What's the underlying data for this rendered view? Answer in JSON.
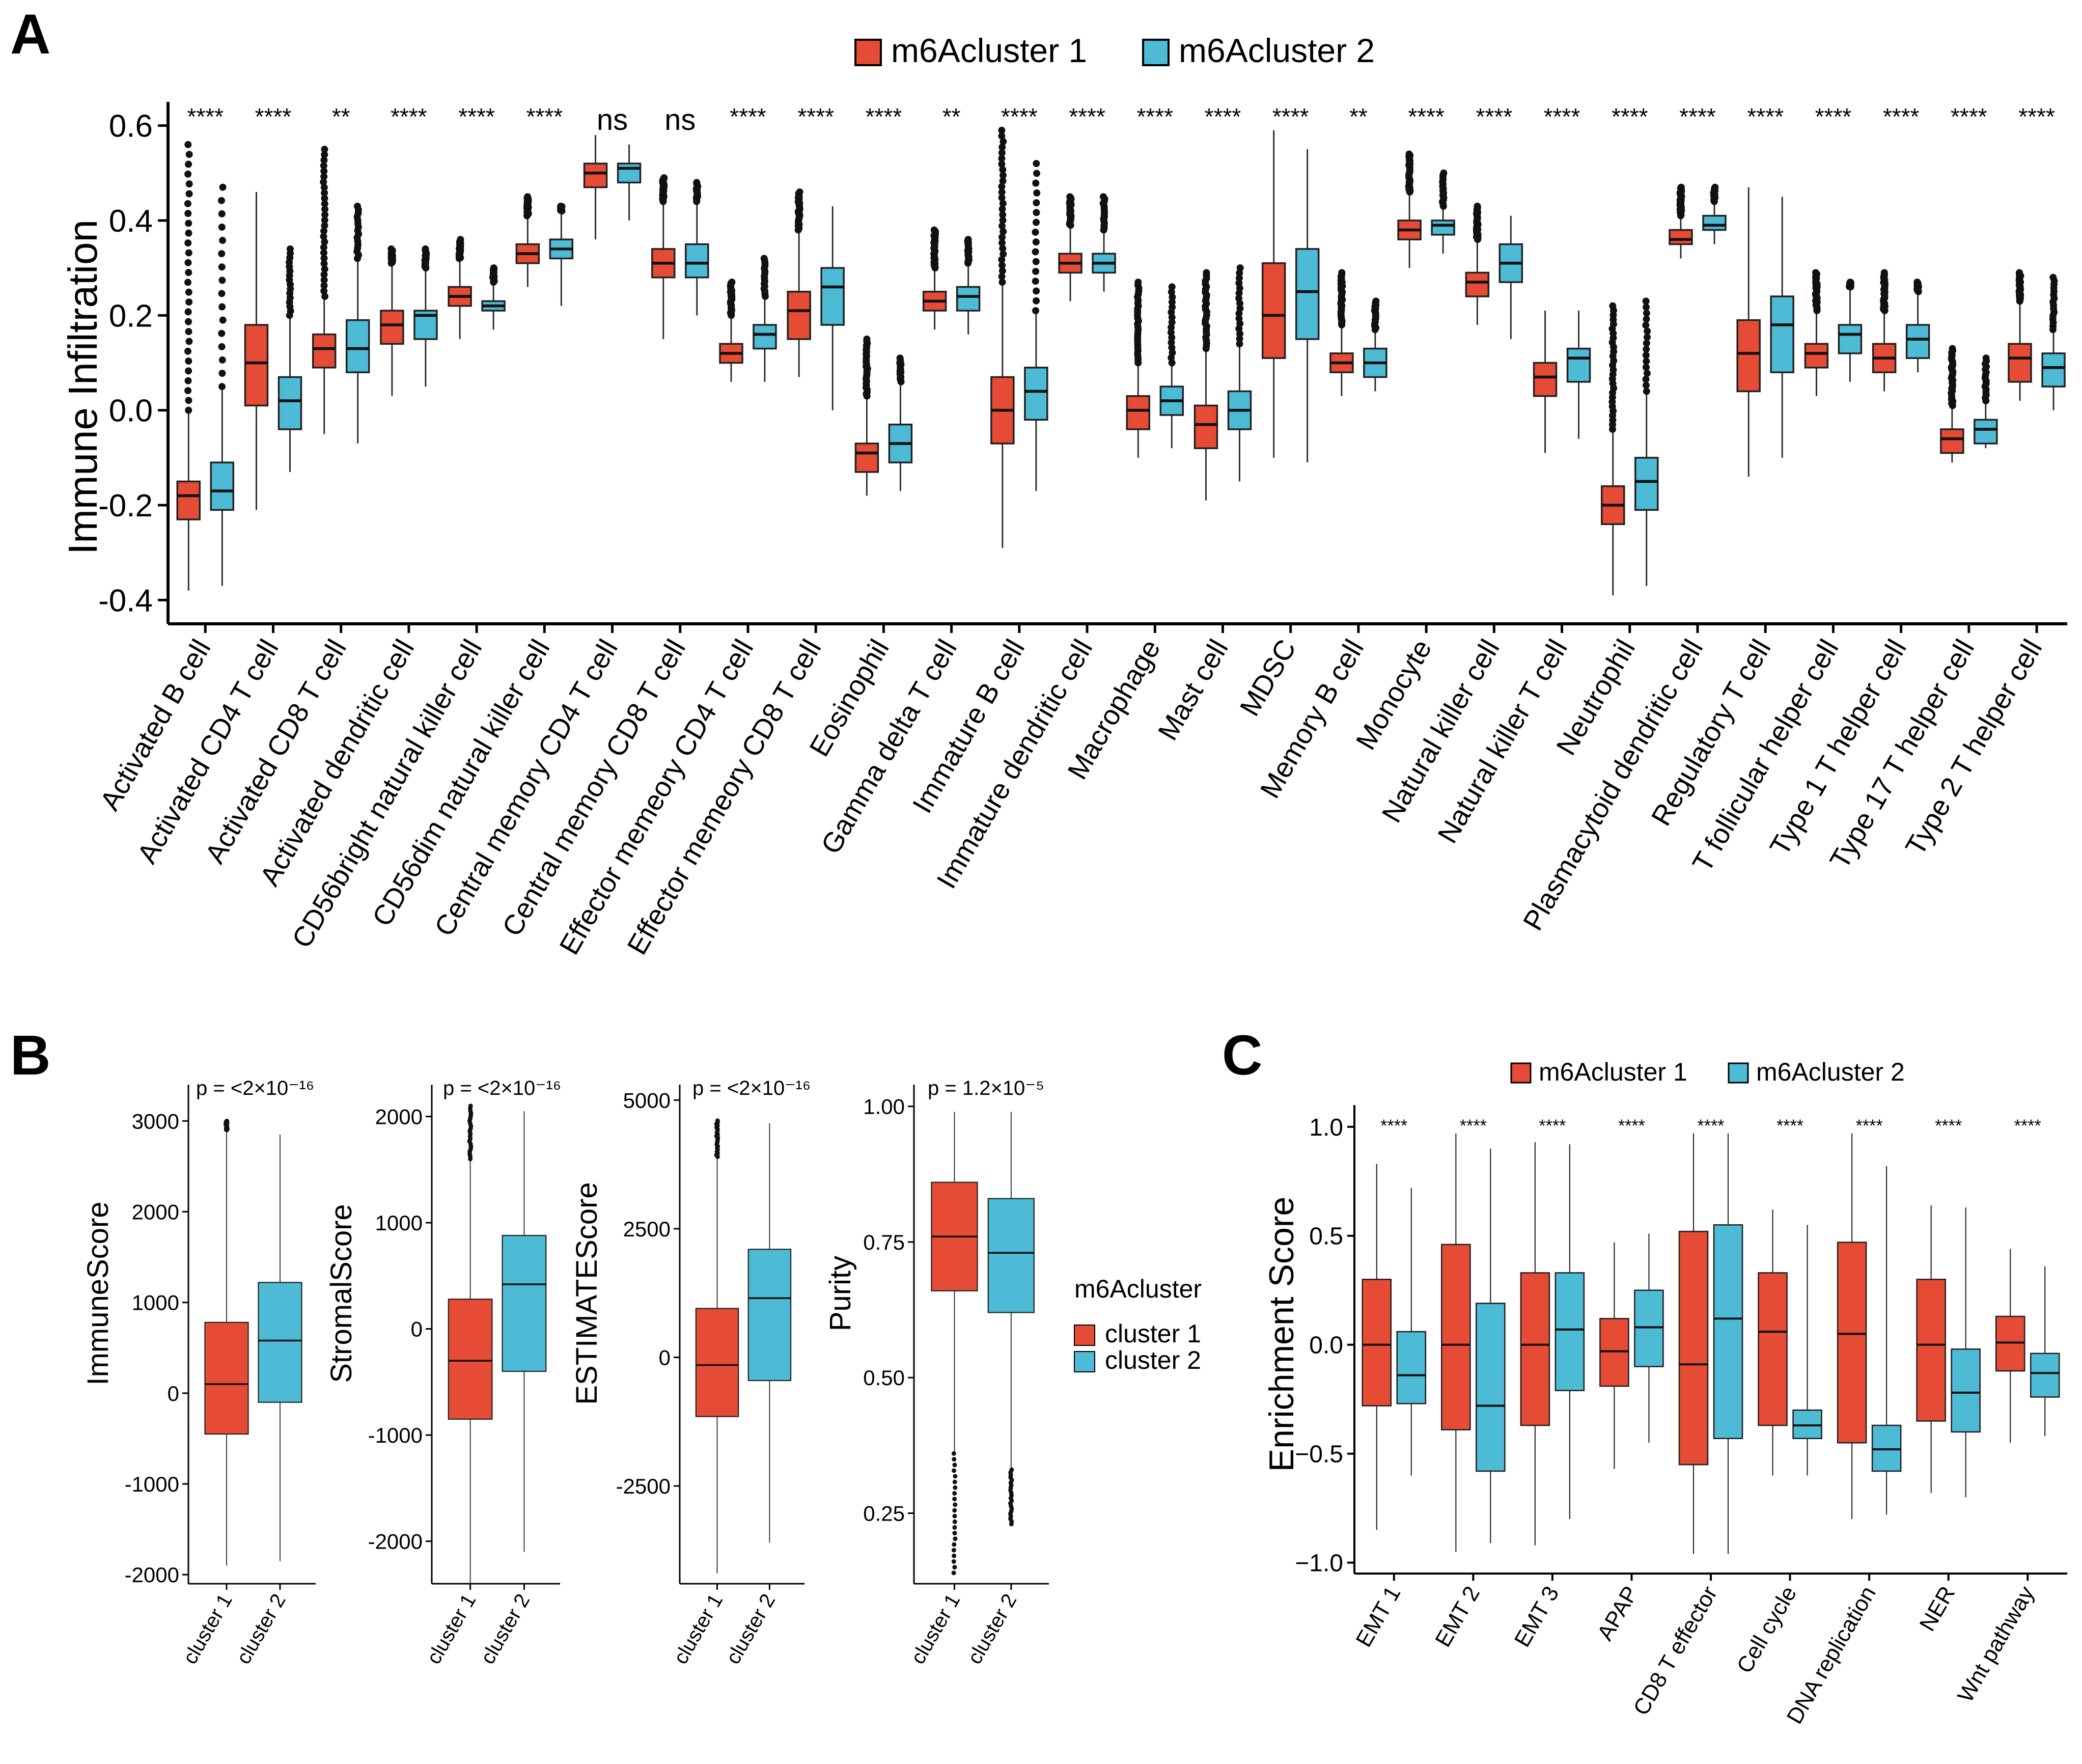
{
  "colors": {
    "cluster1": "#E64B35",
    "cluster2": "#4DBBD5",
    "axis": "#000000"
  },
  "chart_data": [
    {
      "panel": "A",
      "type": "box",
      "ylabel": "Immune Infiltration",
      "ylim": [
        -0.45,
        0.65
      ],
      "yticks": [
        -0.4,
        -0.2,
        0.0,
        0.2,
        0.4,
        0.6
      ],
      "ytick_labels": [
        "-0.4",
        "-0.2",
        "0.0",
        "0.2",
        "0.4",
        "0.6"
      ],
      "legend": [
        "m6Acluster 1",
        "m6Acluster 2"
      ],
      "categories": [
        "Activated B cell",
        "Activated CD4 T cell",
        "Activated CD8 T cell",
        "Activated dendritic cell",
        "CD56bright natural killer cell",
        "CD56dim natural killer cell",
        "Central memory CD4 T cell",
        "Central memory CD8 T cell",
        "Effector memeory CD4 T cell",
        "Effector memeory CD8 T cell",
        "Eosinophil",
        "Gamma delta T cell",
        "Immature  B cell",
        "Immature dendritic cell",
        "Macrophage",
        "Mast cell",
        "MDSC",
        "Memory B cell",
        "Monocyte",
        "Natural killer cell",
        "Natural killer T cell",
        "Neutrophil",
        "Plasmacytoid dendritic cell",
        "Regulatory T cell",
        "T follicular helper cell",
        "Type 1 T helper cell",
        "Type 17 T helper cell",
        "Type 2 T helper cell"
      ],
      "significance": [
        "****",
        "****",
        "**",
        "****",
        "****",
        "****",
        "ns",
        "ns",
        "****",
        "****",
        "****",
        "**",
        "****",
        "****",
        "****",
        "****",
        "****",
        "**",
        "****",
        "****",
        "****",
        "****",
        "****",
        "****",
        "****",
        "****",
        "****",
        "****"
      ],
      "series": [
        {
          "name": "m6Acluster 1",
          "stats": [
            [
              -0.38,
              -0.23,
              -0.18,
              -0.15,
              0.0,
              0.56
            ],
            [
              -0.21,
              0.01,
              0.1,
              0.18,
              0.46,
              0.46
            ],
            [
              -0.05,
              0.09,
              0.13,
              0.16,
              0.24,
              0.55
            ],
            [
              0.03,
              0.14,
              0.18,
              0.21,
              0.31,
              0.34
            ],
            [
              0.15,
              0.22,
              0.24,
              0.26,
              0.32,
              0.36
            ],
            [
              0.26,
              0.31,
              0.33,
              0.35,
              0.41,
              0.45
            ],
            [
              0.36,
              0.47,
              0.5,
              0.52,
              0.58,
              0.58
            ],
            [
              0.15,
              0.28,
              0.31,
              0.34,
              0.44,
              0.49
            ],
            [
              0.06,
              0.1,
              0.12,
              0.14,
              0.2,
              0.27
            ],
            [
              0.07,
              0.15,
              0.21,
              0.25,
              0.38,
              0.46
            ],
            [
              -0.18,
              -0.13,
              -0.09,
              -0.07,
              0.03,
              0.15
            ],
            [
              0.17,
              0.21,
              0.23,
              0.25,
              0.3,
              0.38
            ],
            [
              -0.29,
              -0.07,
              0.0,
              0.07,
              0.27,
              0.59
            ],
            [
              0.23,
              0.29,
              0.31,
              0.33,
              0.39,
              0.45
            ],
            [
              -0.1,
              -0.04,
              0.0,
              0.03,
              0.1,
              0.27
            ],
            [
              -0.19,
              -0.08,
              -0.03,
              0.01,
              0.13,
              0.29
            ],
            [
              -0.1,
              0.11,
              0.2,
              0.31,
              0.59,
              0.59
            ],
            [
              0.03,
              0.08,
              0.1,
              0.12,
              0.18,
              0.29
            ],
            [
              0.3,
              0.36,
              0.38,
              0.4,
              0.46,
              0.54
            ],
            [
              0.18,
              0.24,
              0.27,
              0.29,
              0.36,
              0.43
            ],
            [
              -0.09,
              0.03,
              0.07,
              0.1,
              0.21,
              0.21
            ],
            [
              -0.39,
              -0.24,
              -0.2,
              -0.16,
              -0.04,
              0.22
            ],
            [
              0.32,
              0.35,
              0.36,
              0.38,
              0.41,
              0.47
            ],
            [
              -0.14,
              0.04,
              0.12,
              0.19,
              0.47,
              0.47
            ],
            [
              0.03,
              0.09,
              0.12,
              0.14,
              0.21,
              0.29
            ],
            [
              0.04,
              0.08,
              0.11,
              0.14,
              0.21,
              0.29
            ],
            [
              -0.11,
              -0.09,
              -0.06,
              -0.04,
              0.01,
              0.13
            ],
            [
              0.02,
              0.06,
              0.11,
              0.14,
              0.23,
              0.29
            ]
          ]
        },
        {
          "name": "m6Acluster 2",
          "stats": [
            [
              -0.37,
              -0.21,
              -0.17,
              -0.11,
              0.05,
              0.47
            ],
            [
              -0.13,
              -0.04,
              0.02,
              0.07,
              0.2,
              0.34
            ],
            [
              -0.07,
              0.08,
              0.13,
              0.19,
              0.32,
              0.43
            ],
            [
              0.05,
              0.15,
              0.2,
              0.21,
              0.3,
              0.34
            ],
            [
              0.17,
              0.21,
              0.22,
              0.23,
              0.27,
              0.3
            ],
            [
              0.22,
              0.32,
              0.34,
              0.36,
              0.42,
              0.43
            ],
            [
              0.4,
              0.48,
              0.51,
              0.52,
              0.56,
              0.56
            ],
            [
              0.2,
              0.28,
              0.31,
              0.35,
              0.44,
              0.48
            ],
            [
              0.06,
              0.13,
              0.16,
              0.18,
              0.24,
              0.32
            ],
            [
              0.0,
              0.18,
              0.26,
              0.3,
              0.43,
              0.43
            ],
            [
              -0.17,
              -0.11,
              -0.07,
              -0.03,
              0.06,
              0.11
            ],
            [
              0.16,
              0.21,
              0.24,
              0.26,
              0.31,
              0.36
            ],
            [
              -0.17,
              -0.02,
              0.04,
              0.09,
              0.21,
              0.52
            ],
            [
              0.25,
              0.29,
              0.31,
              0.33,
              0.38,
              0.45
            ],
            [
              -0.08,
              -0.01,
              0.02,
              0.05,
              0.1,
              0.26
            ],
            [
              -0.15,
              -0.04,
              0.0,
              0.04,
              0.14,
              0.3
            ],
            [
              -0.11,
              0.15,
              0.25,
              0.34,
              0.55,
              0.55
            ],
            [
              0.04,
              0.07,
              0.1,
              0.13,
              0.17,
              0.23
            ],
            [
              0.33,
              0.37,
              0.39,
              0.4,
              0.43,
              0.5
            ],
            [
              0.15,
              0.27,
              0.31,
              0.35,
              0.41,
              0.41
            ],
            [
              -0.06,
              0.06,
              0.11,
              0.13,
              0.21,
              0.21
            ],
            [
              -0.37,
              -0.21,
              -0.15,
              -0.1,
              0.04,
              0.23
            ],
            [
              0.35,
              0.38,
              0.39,
              0.41,
              0.44,
              0.47
            ],
            [
              -0.1,
              0.08,
              0.18,
              0.24,
              0.45,
              0.45
            ],
            [
              0.06,
              0.12,
              0.16,
              0.18,
              0.26,
              0.27
            ],
            [
              0.08,
              0.11,
              0.15,
              0.18,
              0.25,
              0.27
            ],
            [
              -0.08,
              -0.07,
              -0.04,
              -0.02,
              0.02,
              0.11
            ],
            [
              0.0,
              0.05,
              0.09,
              0.12,
              0.17,
              0.28
            ]
          ]
        }
      ]
    },
    {
      "panel": "B1",
      "type": "box",
      "ylabel": "ImmuneScore",
      "ylim": [
        -2100,
        3400
      ],
      "yticks": [
        -2000,
        -1000,
        0,
        1000,
        2000,
        3000
      ],
      "ytick_labels": [
        "-2000",
        "-1000",
        "0",
        "1000",
        "2000",
        "3000"
      ],
      "pvalue": "p = <2×10⁻¹⁶",
      "categories": [
        "cluster 1",
        "cluster 2"
      ],
      "stats": [
        [
          -1900,
          -450,
          100,
          780,
          2900,
          3000
        ],
        [
          -1850,
          -100,
          580,
          1220,
          2850,
          2850
        ]
      ]
    },
    {
      "panel": "B2",
      "type": "box",
      "ylabel": "StromalScore",
      "ylim": [
        -2400,
        2300
      ],
      "yticks": [
        -2000,
        -1000,
        0,
        1000,
        2000
      ],
      "ytick_labels": [
        "-2000",
        "-1000",
        "0",
        "1000",
        "2000"
      ],
      "pvalue": "p = <2×10⁻¹⁶",
      "categories": [
        "cluster 1",
        "cluster 2"
      ],
      "stats": [
        [
          -2450,
          -850,
          -300,
          280,
          1600,
          2100
        ],
        [
          -2100,
          -400,
          420,
          880,
          2050,
          2050
        ]
      ]
    },
    {
      "panel": "B3",
      "type": "box",
      "ylabel": "ESTIMATEScore",
      "ylim": [
        -4400,
        5300
      ],
      "yticks": [
        -2500,
        0,
        2500,
        5000
      ],
      "ytick_labels": [
        "-2500",
        "0",
        "2500",
        "5000"
      ],
      "pvalue": "p = <2×10⁻¹⁶",
      "categories": [
        "cluster 1",
        "cluster 2"
      ],
      "stats": [
        [
          -4200,
          -1150,
          -150,
          950,
          3900,
          4600
        ],
        [
          -3600,
          -450,
          1150,
          2100,
          4550,
          4550
        ]
      ]
    },
    {
      "panel": "B4",
      "type": "box",
      "ylabel": "Purity",
      "ylim": [
        0.12,
        1.04
      ],
      "yticks": [
        0.25,
        0.5,
        0.75,
        1.0
      ],
      "ytick_labels": [
        "0.25",
        "0.50",
        "0.75",
        "1.00"
      ],
      "pvalue": "p = 1.2×10⁻⁵",
      "categories": [
        "cluster 1",
        "cluster 2"
      ],
      "stats": [
        [
          0.36,
          0.66,
          0.76,
          0.86,
          0.99,
          0.14
        ],
        [
          0.33,
          0.62,
          0.73,
          0.83,
          0.99,
          0.23
        ]
      ],
      "legend_title": "m6Acluster",
      "legend": [
        "cluster 1",
        "cluster 2"
      ]
    },
    {
      "panel": "C",
      "type": "box",
      "ylabel": "Enrichment Score",
      "ylim": [
        -1.05,
        1.1
      ],
      "yticks": [
        -1.0,
        -0.5,
        0.0,
        0.5,
        1.0
      ],
      "ytick_labels": [
        "−1.0",
        "−0.5",
        "0.0",
        "0.5",
        "1.0"
      ],
      "legend": [
        "m6Acluster 1",
        "m6Acluster 2"
      ],
      "categories": [
        "EMT 1",
        "EMT 2",
        "EMT 3",
        "APAP",
        "CD8 T effector",
        "Cell cycle",
        "DNA replication",
        "NER",
        "Wnt pathway"
      ],
      "significance": [
        "****",
        "****",
        "****",
        "****",
        "****",
        "****",
        "****",
        "****",
        "****"
      ],
      "series": [
        {
          "name": "m6Acluster 1",
          "stats": [
            [
              -0.85,
              -0.28,
              0.0,
              0.3,
              0.83
            ],
            [
              -0.95,
              -0.39,
              0.0,
              0.46,
              0.97
            ],
            [
              -0.92,
              -0.37,
              0.0,
              0.33,
              0.93
            ],
            [
              -0.57,
              -0.19,
              -0.03,
              0.12,
              0.47
            ],
            [
              -0.96,
              -0.55,
              -0.09,
              0.52,
              0.97
            ],
            [
              -0.6,
              -0.37,
              0.06,
              0.33,
              0.62
            ],
            [
              -0.8,
              -0.45,
              0.05,
              0.47,
              0.97
            ],
            [
              -0.68,
              -0.35,
              0.0,
              0.3,
              0.64
            ],
            [
              -0.45,
              -0.12,
              0.01,
              0.13,
              0.44
            ]
          ]
        },
        {
          "name": "m6Acluster 2",
          "stats": [
            [
              -0.6,
              -0.27,
              -0.14,
              0.06,
              0.72
            ],
            [
              -0.91,
              -0.58,
              -0.28,
              0.19,
              0.9
            ],
            [
              -0.8,
              -0.21,
              0.07,
              0.33,
              0.92
            ],
            [
              -0.45,
              -0.1,
              0.08,
              0.25,
              0.51
            ],
            [
              -0.96,
              -0.43,
              0.12,
              0.55,
              0.97
            ],
            [
              -0.6,
              -0.43,
              -0.37,
              -0.3,
              0.55
            ],
            [
              -0.78,
              -0.58,
              -0.48,
              -0.37,
              0.82
            ],
            [
              -0.7,
              -0.4,
              -0.22,
              -0.02,
              0.63
            ],
            [
              -0.42,
              -0.24,
              -0.13,
              -0.04,
              0.36
            ]
          ]
        }
      ]
    }
  ],
  "labels": {
    "panel_a": "A",
    "panel_b": "B",
    "panel_c": "C"
  }
}
